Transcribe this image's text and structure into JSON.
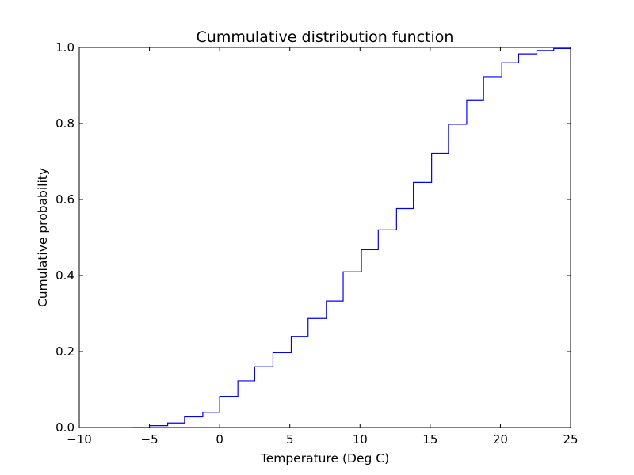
{
  "chart_data": {
    "type": "line",
    "drawstyle": "steps",
    "title": "Cummulative distribution function",
    "xlabel": "Temperature (Deg C)",
    "ylabel": "Cumulative probability",
    "xlim": [
      -10,
      25
    ],
    "ylim": [
      0.0,
      1.0
    ],
    "xticks": [
      -10,
      -5,
      0,
      5,
      10,
      15,
      20,
      25
    ],
    "xtick_labels": [
      "−10",
      "−5",
      "0",
      "5",
      "10",
      "15",
      "20",
      "25"
    ],
    "yticks": [
      0.0,
      0.2,
      0.4,
      0.6,
      0.8,
      1.0
    ],
    "ytick_labels": [
      "0.0",
      "0.2",
      "0.4",
      "0.6",
      "0.8",
      "1.0"
    ],
    "grid": false,
    "color": "#0000ff",
    "series": [
      {
        "x": [
          -6.3,
          -5.0,
          -3.7,
          -2.5,
          -1.2,
          0.0,
          1.3,
          2.5,
          3.8,
          5.1,
          6.3,
          7.6,
          8.8,
          10.1,
          11.3,
          12.6,
          13.8,
          15.1,
          16.3,
          17.6,
          18.8,
          20.1,
          21.3,
          22.6,
          23.8
        ],
        "y": [
          0.0,
          0.005,
          0.012,
          0.028,
          0.04,
          0.082,
          0.123,
          0.16,
          0.197,
          0.239,
          0.287,
          0.333,
          0.41,
          0.468,
          0.52,
          0.576,
          0.645,
          0.722,
          0.798,
          0.862,
          0.923,
          0.96,
          0.983,
          0.992,
          0.997
        ]
      }
    ]
  }
}
